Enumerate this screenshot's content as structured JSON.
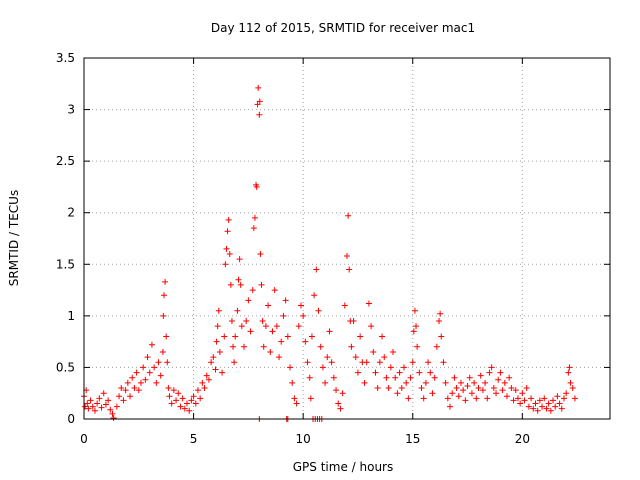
{
  "chart_data": {
    "type": "scatter",
    "title": "Day 112 of 2015, SRMTID for receiver mac1",
    "xlabel": "GPS time / hours",
    "ylabel": "SRMTID / TECUs",
    "xlim": [
      0,
      24
    ],
    "ylim": [
      0,
      3.5
    ],
    "x_ticks": [
      0,
      5,
      10,
      15,
      20
    ],
    "y_ticks": [
      0,
      0.5,
      1,
      1.5,
      2,
      2.5,
      3,
      3.5
    ],
    "x_tick_labels": [
      "0",
      "5",
      "10",
      "15",
      "20"
    ],
    "y_tick_labels": [
      "0",
      "0.5",
      "1",
      "1.5",
      "2",
      "2.5",
      "3",
      "3.5"
    ],
    "grid": true,
    "marker": "+",
    "series": [
      {
        "name": "mac1",
        "color": "#ff0000",
        "points": [
          [
            0.0,
            0.22
          ],
          [
            0.05,
            0.12
          ],
          [
            0.1,
            0.28
          ],
          [
            0.15,
            0.15
          ],
          [
            0.2,
            0.1
          ],
          [
            0.3,
            0.18
          ],
          [
            0.4,
            0.12
          ],
          [
            0.5,
            0.08
          ],
          [
            0.6,
            0.15
          ],
          [
            0.7,
            0.2
          ],
          [
            0.8,
            0.11
          ],
          [
            0.9,
            0.25
          ],
          [
            1.0,
            0.14
          ],
          [
            1.1,
            0.18
          ],
          [
            1.2,
            0.09
          ],
          [
            1.3,
            0.05
          ],
          [
            1.35,
            0.01
          ],
          [
            1.5,
            0.12
          ],
          [
            1.6,
            0.22
          ],
          [
            1.7,
            0.3
          ],
          [
            1.8,
            0.18
          ],
          [
            1.9,
            0.28
          ],
          [
            2.0,
            0.35
          ],
          [
            2.1,
            0.22
          ],
          [
            2.2,
            0.4
          ],
          [
            2.3,
            0.3
          ],
          [
            2.4,
            0.45
          ],
          [
            2.5,
            0.28
          ],
          [
            2.6,
            0.35
          ],
          [
            2.7,
            0.5
          ],
          [
            2.8,
            0.38
          ],
          [
            2.9,
            0.6
          ],
          [
            3.0,
            0.45
          ],
          [
            3.1,
            0.72
          ],
          [
            3.2,
            0.5
          ],
          [
            3.3,
            0.35
          ],
          [
            3.4,
            0.55
          ],
          [
            3.5,
            0.42
          ],
          [
            3.6,
            0.65
          ],
          [
            3.62,
            1.0
          ],
          [
            3.65,
            1.2
          ],
          [
            3.7,
            1.33
          ],
          [
            3.75,
            0.8
          ],
          [
            3.8,
            0.55
          ],
          [
            3.85,
            0.3
          ],
          [
            3.9,
            0.22
          ],
          [
            4.0,
            0.15
          ],
          [
            4.1,
            0.28
          ],
          [
            4.2,
            0.18
          ],
          [
            4.3,
            0.25
          ],
          [
            4.4,
            0.12
          ],
          [
            4.5,
            0.2
          ],
          [
            4.6,
            0.1
          ],
          [
            4.7,
            0.15
          ],
          [
            4.8,
            0.08
          ],
          [
            4.9,
            0.18
          ],
          [
            5.0,
            0.22
          ],
          [
            5.1,
            0.15
          ],
          [
            5.2,
            0.28
          ],
          [
            5.3,
            0.2
          ],
          [
            5.4,
            0.35
          ],
          [
            5.5,
            0.3
          ],
          [
            5.6,
            0.42
          ],
          [
            5.7,
            0.38
          ],
          [
            5.8,
            0.55
          ],
          [
            5.9,
            0.6
          ],
          [
            6.0,
            0.48
          ],
          [
            6.05,
            0.75
          ],
          [
            6.1,
            0.9
          ],
          [
            6.15,
            1.05
          ],
          [
            6.2,
            0.65
          ],
          [
            6.3,
            0.45
          ],
          [
            6.4,
            0.8
          ],
          [
            6.45,
            1.5
          ],
          [
            6.5,
            1.65
          ],
          [
            6.55,
            1.82
          ],
          [
            6.6,
            1.93
          ],
          [
            6.65,
            1.6
          ],
          [
            6.7,
            1.3
          ],
          [
            6.75,
            0.95
          ],
          [
            6.8,
            0.7
          ],
          [
            6.85,
            0.55
          ],
          [
            6.9,
            0.8
          ],
          [
            7.0,
            1.05
          ],
          [
            7.05,
            1.35
          ],
          [
            7.1,
            1.55
          ],
          [
            7.15,
            1.3
          ],
          [
            7.2,
            0.9
          ],
          [
            7.3,
            0.7
          ],
          [
            7.4,
            0.95
          ],
          [
            7.5,
            1.15
          ],
          [
            7.6,
            0.85
          ],
          [
            7.7,
            1.25
          ],
          [
            7.75,
            1.85
          ],
          [
            7.8,
            1.95
          ],
          [
            7.85,
            2.27
          ],
          [
            7.88,
            2.25
          ],
          [
            7.92,
            3.05
          ],
          [
            7.95,
            3.21
          ],
          [
            8.0,
            2.95
          ],
          [
            8.02,
            3.08
          ],
          [
            8.05,
            1.6
          ],
          [
            8.1,
            1.3
          ],
          [
            8.15,
            0.95
          ],
          [
            8.2,
            0.7
          ],
          [
            8.3,
            0.9
          ],
          [
            8.4,
            1.1
          ],
          [
            8.5,
            0.65
          ],
          [
            8.6,
            0.85
          ],
          [
            8.7,
            1.25
          ],
          [
            8.8,
            0.9
          ],
          [
            8.9,
            0.6
          ],
          [
            9.0,
            0.75
          ],
          [
            9.1,
            1.0
          ],
          [
            9.2,
            1.15
          ],
          [
            9.3,
            0.8
          ],
          [
            9.4,
            0.5
          ],
          [
            9.5,
            0.35
          ],
          [
            9.6,
            0.2
          ],
          [
            9.7,
            0.15
          ],
          [
            9.8,
            0.9
          ],
          [
            9.9,
            1.1
          ],
          [
            10.0,
            1.0
          ],
          [
            10.1,
            0.75
          ],
          [
            10.2,
            0.55
          ],
          [
            10.3,
            0.4
          ],
          [
            10.35,
            0.2
          ],
          [
            10.4,
            0.8
          ],
          [
            10.5,
            1.2
          ],
          [
            10.6,
            1.45
          ],
          [
            10.7,
            1.05
          ],
          [
            10.8,
            0.7
          ],
          [
            10.9,
            0.5
          ],
          [
            11.0,
            0.35
          ],
          [
            11.1,
            0.6
          ],
          [
            11.2,
            0.85
          ],
          [
            11.3,
            0.55
          ],
          [
            11.4,
            0.4
          ],
          [
            11.5,
            0.28
          ],
          [
            11.6,
            0.15
          ],
          [
            11.7,
            0.1
          ],
          [
            11.8,
            0.25
          ],
          [
            11.9,
            1.1
          ],
          [
            12.0,
            1.58
          ],
          [
            12.05,
            1.97
          ],
          [
            12.1,
            1.45
          ],
          [
            12.15,
            0.95
          ],
          [
            12.2,
            0.7
          ],
          [
            12.3,
            0.95
          ],
          [
            12.4,
            0.6
          ],
          [
            12.5,
            0.45
          ],
          [
            12.6,
            0.8
          ],
          [
            12.7,
            0.55
          ],
          [
            12.8,
            0.35
          ],
          [
            12.9,
            0.55
          ],
          [
            13.0,
            1.12
          ],
          [
            13.1,
            0.9
          ],
          [
            13.2,
            0.65
          ],
          [
            13.3,
            0.45
          ],
          [
            13.4,
            0.3
          ],
          [
            13.5,
            0.55
          ],
          [
            13.6,
            0.8
          ],
          [
            13.7,
            0.6
          ],
          [
            13.8,
            0.4
          ],
          [
            13.9,
            0.3
          ],
          [
            14.0,
            0.5
          ],
          [
            14.1,
            0.65
          ],
          [
            14.2,
            0.4
          ],
          [
            14.3,
            0.25
          ],
          [
            14.4,
            0.45
          ],
          [
            14.5,
            0.3
          ],
          [
            14.6,
            0.5
          ],
          [
            14.7,
            0.35
          ],
          [
            14.8,
            0.2
          ],
          [
            14.9,
            0.4
          ],
          [
            15.0,
            0.55
          ],
          [
            15.05,
            0.85
          ],
          [
            15.1,
            1.05
          ],
          [
            15.15,
            0.9
          ],
          [
            15.2,
            0.7
          ],
          [
            15.3,
            0.45
          ],
          [
            15.4,
            0.3
          ],
          [
            15.5,
            0.2
          ],
          [
            15.6,
            0.35
          ],
          [
            15.7,
            0.55
          ],
          [
            15.8,
            0.45
          ],
          [
            15.9,
            0.25
          ],
          [
            16.0,
            0.4
          ],
          [
            16.1,
            0.7
          ],
          [
            16.2,
            0.95
          ],
          [
            16.25,
            1.02
          ],
          [
            16.3,
            0.8
          ],
          [
            16.4,
            0.55
          ],
          [
            16.5,
            0.35
          ],
          [
            16.6,
            0.2
          ],
          [
            16.7,
            0.12
          ],
          [
            16.8,
            0.25
          ],
          [
            16.9,
            0.4
          ],
          [
            17.0,
            0.3
          ],
          [
            17.1,
            0.22
          ],
          [
            17.2,
            0.35
          ],
          [
            17.3,
            0.28
          ],
          [
            17.4,
            0.18
          ],
          [
            17.5,
            0.32
          ],
          [
            17.6,
            0.4
          ],
          [
            17.7,
            0.25
          ],
          [
            17.8,
            0.35
          ],
          [
            17.9,
            0.2
          ],
          [
            18.0,
            0.3
          ],
          [
            18.1,
            0.42
          ],
          [
            18.2,
            0.28
          ],
          [
            18.3,
            0.35
          ],
          [
            18.4,
            0.2
          ],
          [
            18.5,
            0.45
          ],
          [
            18.6,
            0.5
          ],
          [
            18.7,
            0.3
          ],
          [
            18.8,
            0.25
          ],
          [
            18.9,
            0.38
          ],
          [
            19.0,
            0.45
          ],
          [
            19.1,
            0.28
          ],
          [
            19.2,
            0.35
          ],
          [
            19.3,
            0.22
          ],
          [
            19.4,
            0.4
          ],
          [
            19.5,
            0.3
          ],
          [
            19.6,
            0.18
          ],
          [
            19.7,
            0.28
          ],
          [
            19.8,
            0.2
          ],
          [
            19.9,
            0.15
          ],
          [
            20.0,
            0.25
          ],
          [
            20.1,
            0.18
          ],
          [
            20.2,
            0.3
          ],
          [
            20.3,
            0.12
          ],
          [
            20.4,
            0.2
          ],
          [
            20.5,
            0.1
          ],
          [
            20.6,
            0.15
          ],
          [
            20.7,
            0.08
          ],
          [
            20.8,
            0.18
          ],
          [
            20.9,
            0.12
          ],
          [
            21.0,
            0.2
          ],
          [
            21.1,
            0.1
          ],
          [
            21.2,
            0.15
          ],
          [
            21.3,
            0.08
          ],
          [
            21.4,
            0.18
          ],
          [
            21.5,
            0.12
          ],
          [
            21.6,
            0.22
          ],
          [
            21.7,
            0.15
          ],
          [
            21.8,
            0.1
          ],
          [
            21.9,
            0.2
          ],
          [
            22.0,
            0.25
          ],
          [
            22.1,
            0.45
          ],
          [
            22.15,
            0.5
          ],
          [
            22.2,
            0.35
          ],
          [
            22.3,
            0.3
          ],
          [
            22.4,
            0.2
          ],
          [
            8.0,
            0.0
          ],
          [
            9.25,
            0.0
          ],
          [
            9.3,
            0.0
          ],
          [
            10.45,
            0.0
          ],
          [
            10.55,
            0.0
          ],
          [
            10.65,
            0.0
          ],
          [
            10.75,
            0.0
          ],
          [
            10.85,
            0.0
          ]
        ]
      }
    ]
  }
}
